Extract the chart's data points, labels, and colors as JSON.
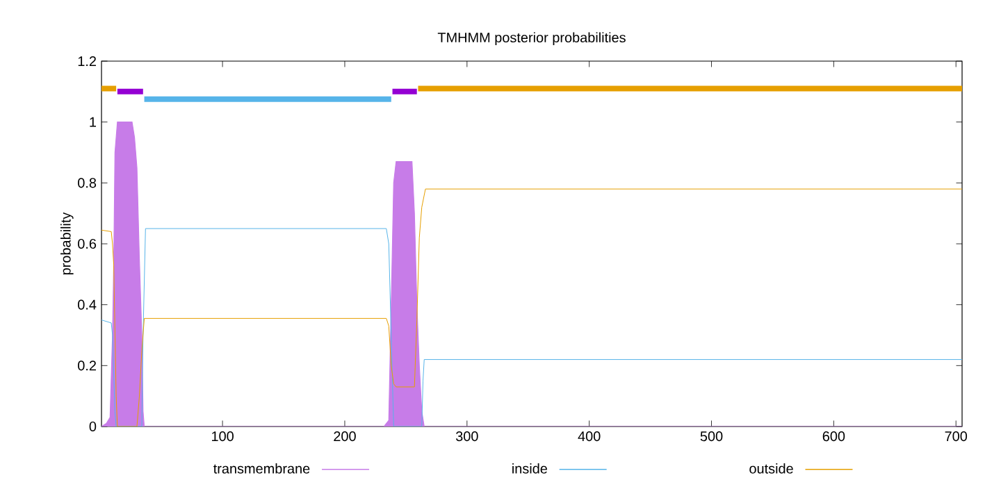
{
  "chart_data": {
    "type": "line",
    "title": "TMHMM posterior probabilities",
    "ylabel": "probability",
    "xlim": [
      1,
      705
    ],
    "ylim": [
      0,
      1.2
    ],
    "xticks": [
      100,
      200,
      300,
      400,
      500,
      600,
      700
    ],
    "yticks": [
      0,
      0.2,
      0.4,
      0.6,
      0.8,
      1,
      1.2
    ],
    "legend": "bottom",
    "grid": false,
    "series": [
      {
        "name": "transmembrane",
        "type": "area",
        "color": "#c77ce8",
        "x": [
          1,
          5,
          8,
          10,
          11,
          12,
          14,
          26,
          28,
          30,
          32,
          34,
          35,
          36,
          232,
          236,
          238,
          240,
          242,
          255,
          257,
          259,
          261,
          263,
          265,
          705
        ],
        "values": [
          0,
          0.01,
          0.03,
          0.3,
          0.53,
          0.9,
          1,
          1,
          0.95,
          0.85,
          0.55,
          0.3,
          0.05,
          0,
          0,
          0.02,
          0.4,
          0.8,
          0.87,
          0.87,
          0.7,
          0.4,
          0.2,
          0.05,
          0,
          0
        ]
      },
      {
        "name": "inside",
        "type": "line",
        "color": "#56b4e9",
        "x": [
          1,
          9,
          10,
          12,
          13,
          34,
          35,
          37,
          234,
          236,
          238,
          240,
          263,
          264,
          265,
          705
        ],
        "values": [
          0.35,
          0.34,
          0.3,
          0.05,
          0,
          0,
          0.3,
          0.65,
          0.65,
          0.6,
          0.3,
          0,
          0,
          0.15,
          0.22,
          0.22
        ]
      },
      {
        "name": "outside",
        "type": "line",
        "color": "#e69f00",
        "x": [
          1,
          9,
          10,
          11,
          13,
          14,
          30,
          32,
          34,
          36,
          234,
          236,
          238,
          240,
          242,
          257,
          259,
          261,
          263,
          266,
          705
        ],
        "values": [
          0.645,
          0.64,
          0.6,
          0.53,
          0.1,
          0,
          0,
          0.1,
          0.25,
          0.355,
          0.355,
          0.33,
          0.2,
          0.14,
          0.13,
          0.13,
          0.35,
          0.62,
          0.72,
          0.78,
          0.78
        ]
      },
      {
        "color": "#e69f00",
        "x": [
          1,
          13,
          14,
          259,
          260,
          705
        ],
        "values": [
          1.11,
          1.11,
          null,
          null,
          1.11,
          1.11
        ]
      },
      {
        "color": "#9400d3",
        "x": [
          14,
          35,
          36,
          238,
          239,
          259
        ],
        "values": [
          1.1,
          1.1,
          null,
          null,
          1.1,
          1.1
        ]
      },
      {
        "color": "#56b4e9",
        "x": [
          36,
          238
        ],
        "values": [
          1.075,
          1.075
        ]
      }
    ]
  }
}
